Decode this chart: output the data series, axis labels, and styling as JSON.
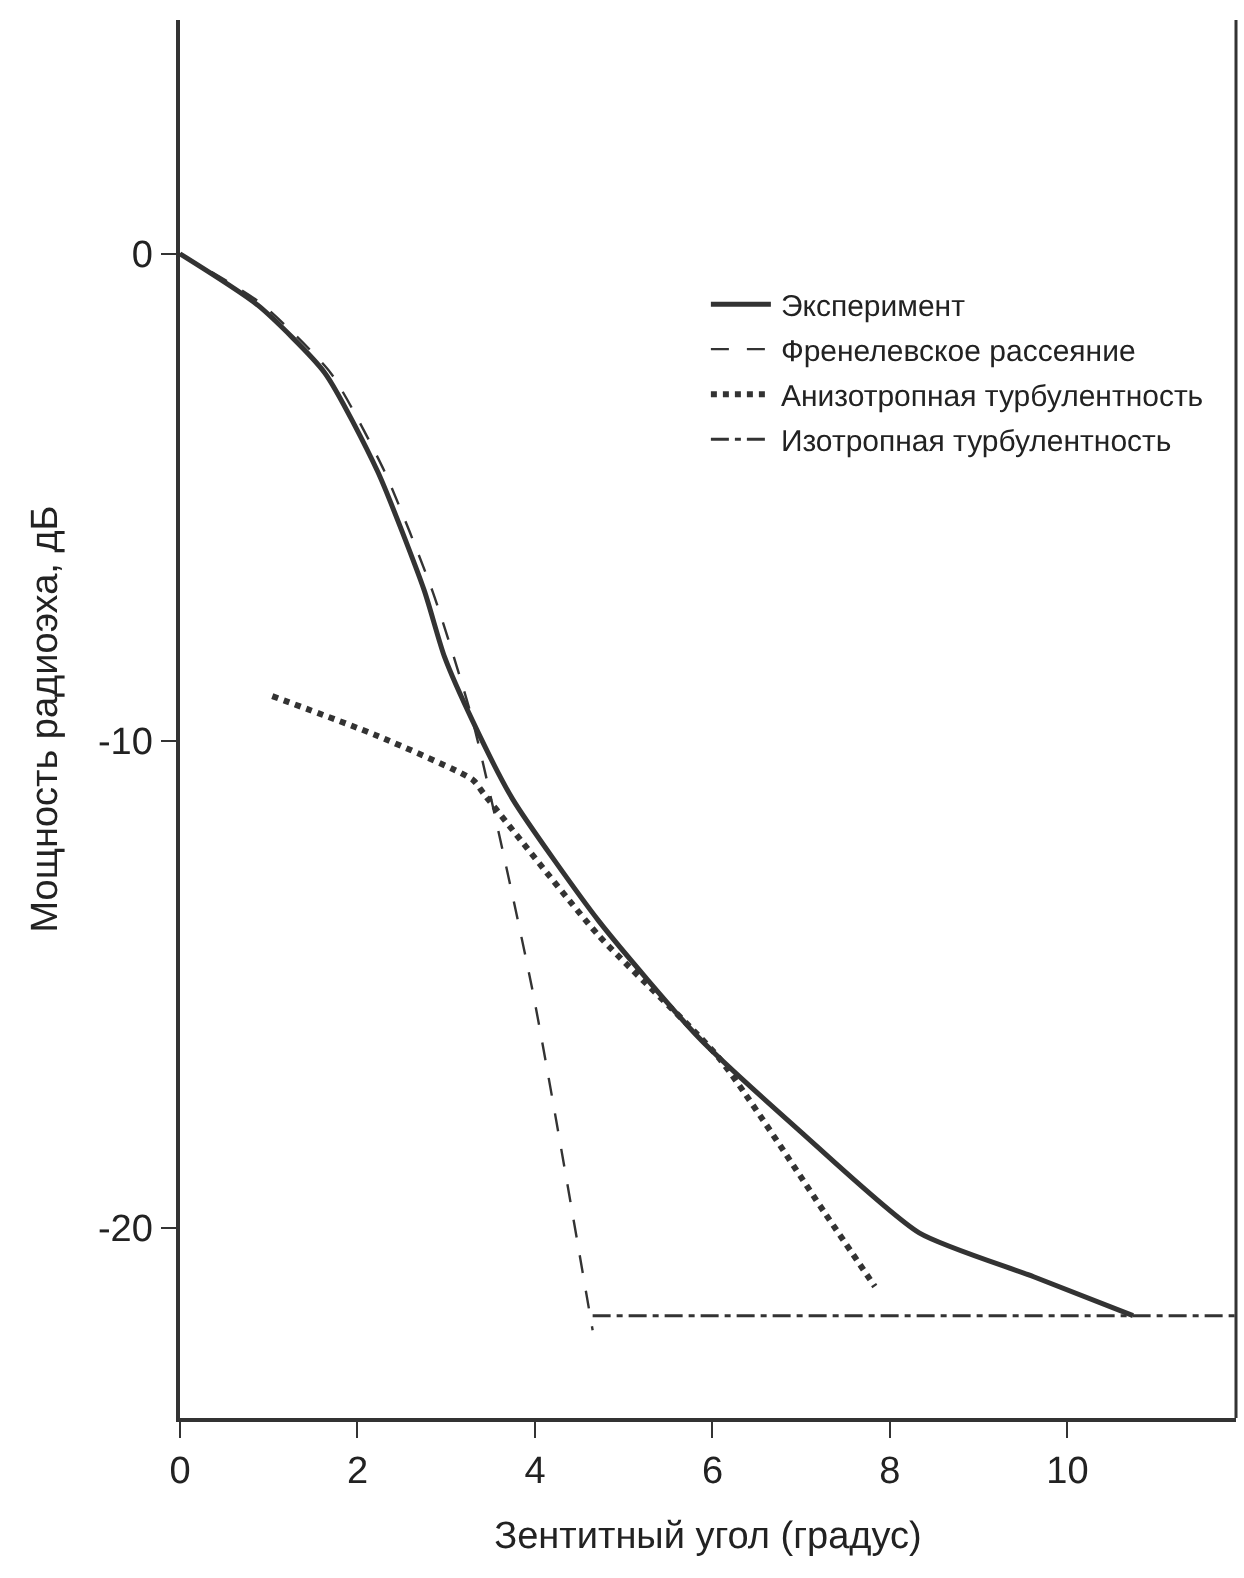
{
  "chart_data": {
    "type": "line",
    "xlabel": "Зентитный угол (градус)",
    "ylabel": "Мощность радиоэха, дБ",
    "xlim": [
      0,
      11.9
    ],
    "ylim": [
      -23.9,
      4.8
    ],
    "xticks": [
      0,
      2,
      4,
      6,
      8,
      10
    ],
    "yticks": [
      0,
      -10,
      -20
    ],
    "legend": "top right",
    "marker": "none",
    "series": [
      {
        "name": "Эксперимент",
        "color": "#333333",
        "line_style": "solid",
        "x": [
          0,
          0.88,
          1.63,
          2.23,
          2.75,
          2.98,
          3.3,
          3.75,
          4.72,
          5.85,
          6.98,
          8.33,
          9.62,
          10.74
        ],
        "values": [
          0,
          -1.06,
          -2.44,
          -4.48,
          -6.9,
          -8.27,
          -9.6,
          -11.2,
          -13.7,
          -16.1,
          -18.0,
          -20.1,
          -21.0,
          -21.8
        ]
      },
      {
        "name": "Френелевское рассеяние",
        "color": "#333333",
        "line_style": "dashed",
        "x": [
          0,
          0.9,
          1.7,
          2.3,
          2.85,
          3.3,
          3.97,
          4.65
        ],
        "values": [
          0,
          -1.0,
          -2.45,
          -4.45,
          -6.95,
          -9.6,
          -15.1,
          -22.1
        ]
      },
      {
        "name": "Анизотропная турбулентность",
        "color": "#333333",
        "line_style": "dotted",
        "x": [
          1.04,
          2.23,
          3.3,
          3.43,
          4.72,
          6.07,
          7.27,
          7.83
        ],
        "values": [
          -9.08,
          -9.9,
          -10.8,
          -11.1,
          -14.0,
          -16.5,
          -19.7,
          -21.2
        ]
      },
      {
        "name": "Изотропная турбулентность",
        "color": "#333333",
        "line_style": "dashdot",
        "x": [
          4.65,
          11.9
        ],
        "values": [
          -21.8,
          -21.8
        ]
      }
    ]
  }
}
